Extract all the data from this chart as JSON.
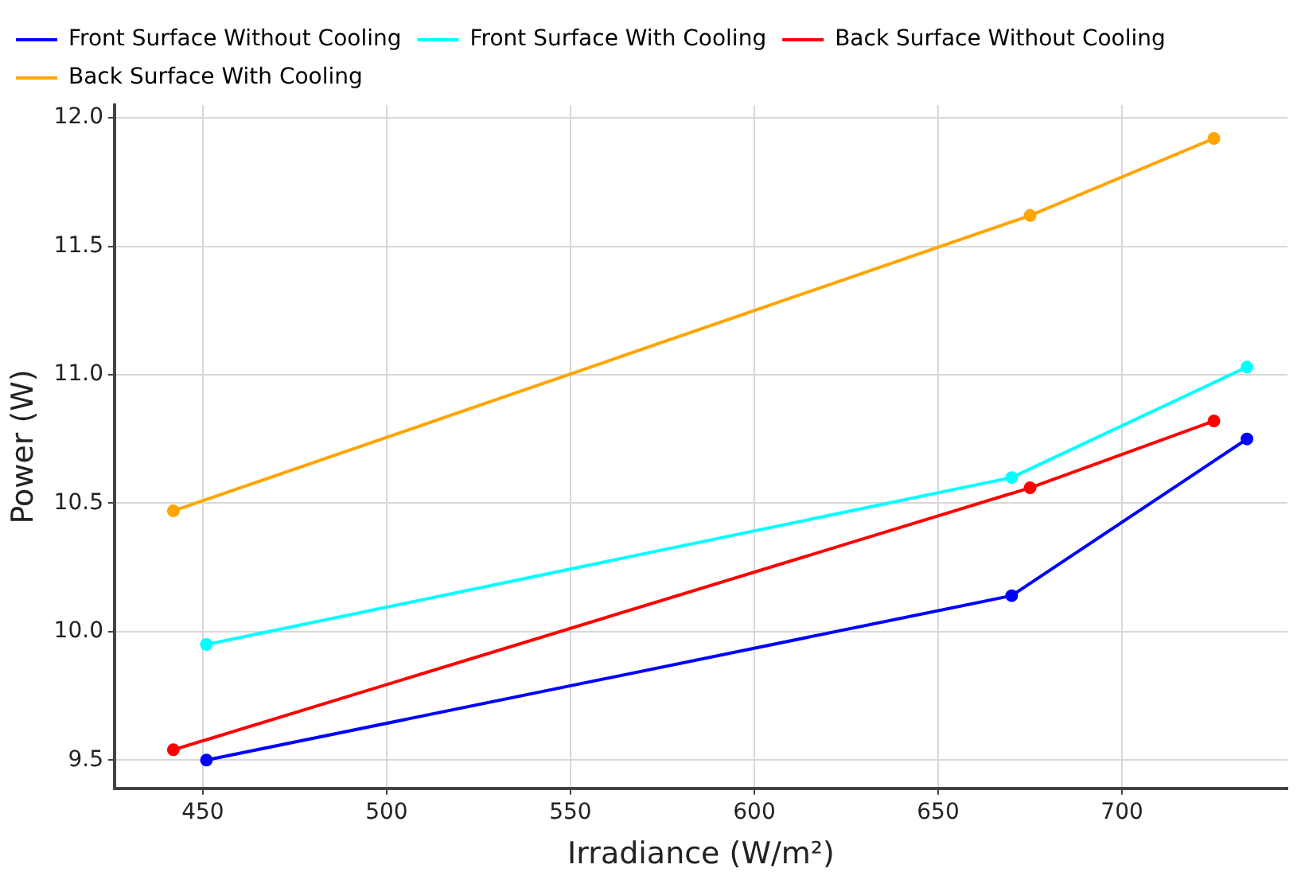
{
  "chart_data": {
    "type": "line",
    "xlabel": "Irradiance (W/m²)",
    "ylabel": "Power (W)",
    "xlim": [
      426,
      745
    ],
    "xticks": [
      450,
      500,
      550,
      600,
      650,
      700
    ],
    "ylim": [
      9.39,
      12.05
    ],
    "yticks": [
      {
        "value": 9.5,
        "label": "9.5"
      },
      {
        "value": 10,
        "label": "10.0"
      },
      {
        "value": 10.5,
        "label": "10.5"
      },
      {
        "value": 11,
        "label": "11.0"
      },
      {
        "value": 11.5,
        "label": "11.5"
      },
      {
        "value": 12,
        "label": "12.0"
      }
    ],
    "grid": true,
    "legend": "top left",
    "marker": "circle",
    "line_style": "solid",
    "series": [
      {
        "name": "Front Surface Without Cooling",
        "color": "#0000ff",
        "x": [
          451,
          670,
          734
        ],
        "values": [
          9.5,
          10.14,
          10.75
        ]
      },
      {
        "name": "Front Surface With Cooling",
        "color": "#00ffff",
        "x": [
          451,
          670,
          734
        ],
        "values": [
          9.95,
          10.6,
          11.03
        ]
      },
      {
        "name": "Back Surface Without Cooling",
        "color": "#ff0000",
        "x": [
          442,
          675,
          725
        ],
        "values": [
          9.54,
          10.56,
          10.82
        ]
      },
      {
        "name": "Back Surface With Cooling",
        "color": "#ffa500",
        "x": [
          442,
          675,
          725
        ],
        "values": [
          10.47,
          11.62,
          11.92
        ]
      }
    ]
  }
}
